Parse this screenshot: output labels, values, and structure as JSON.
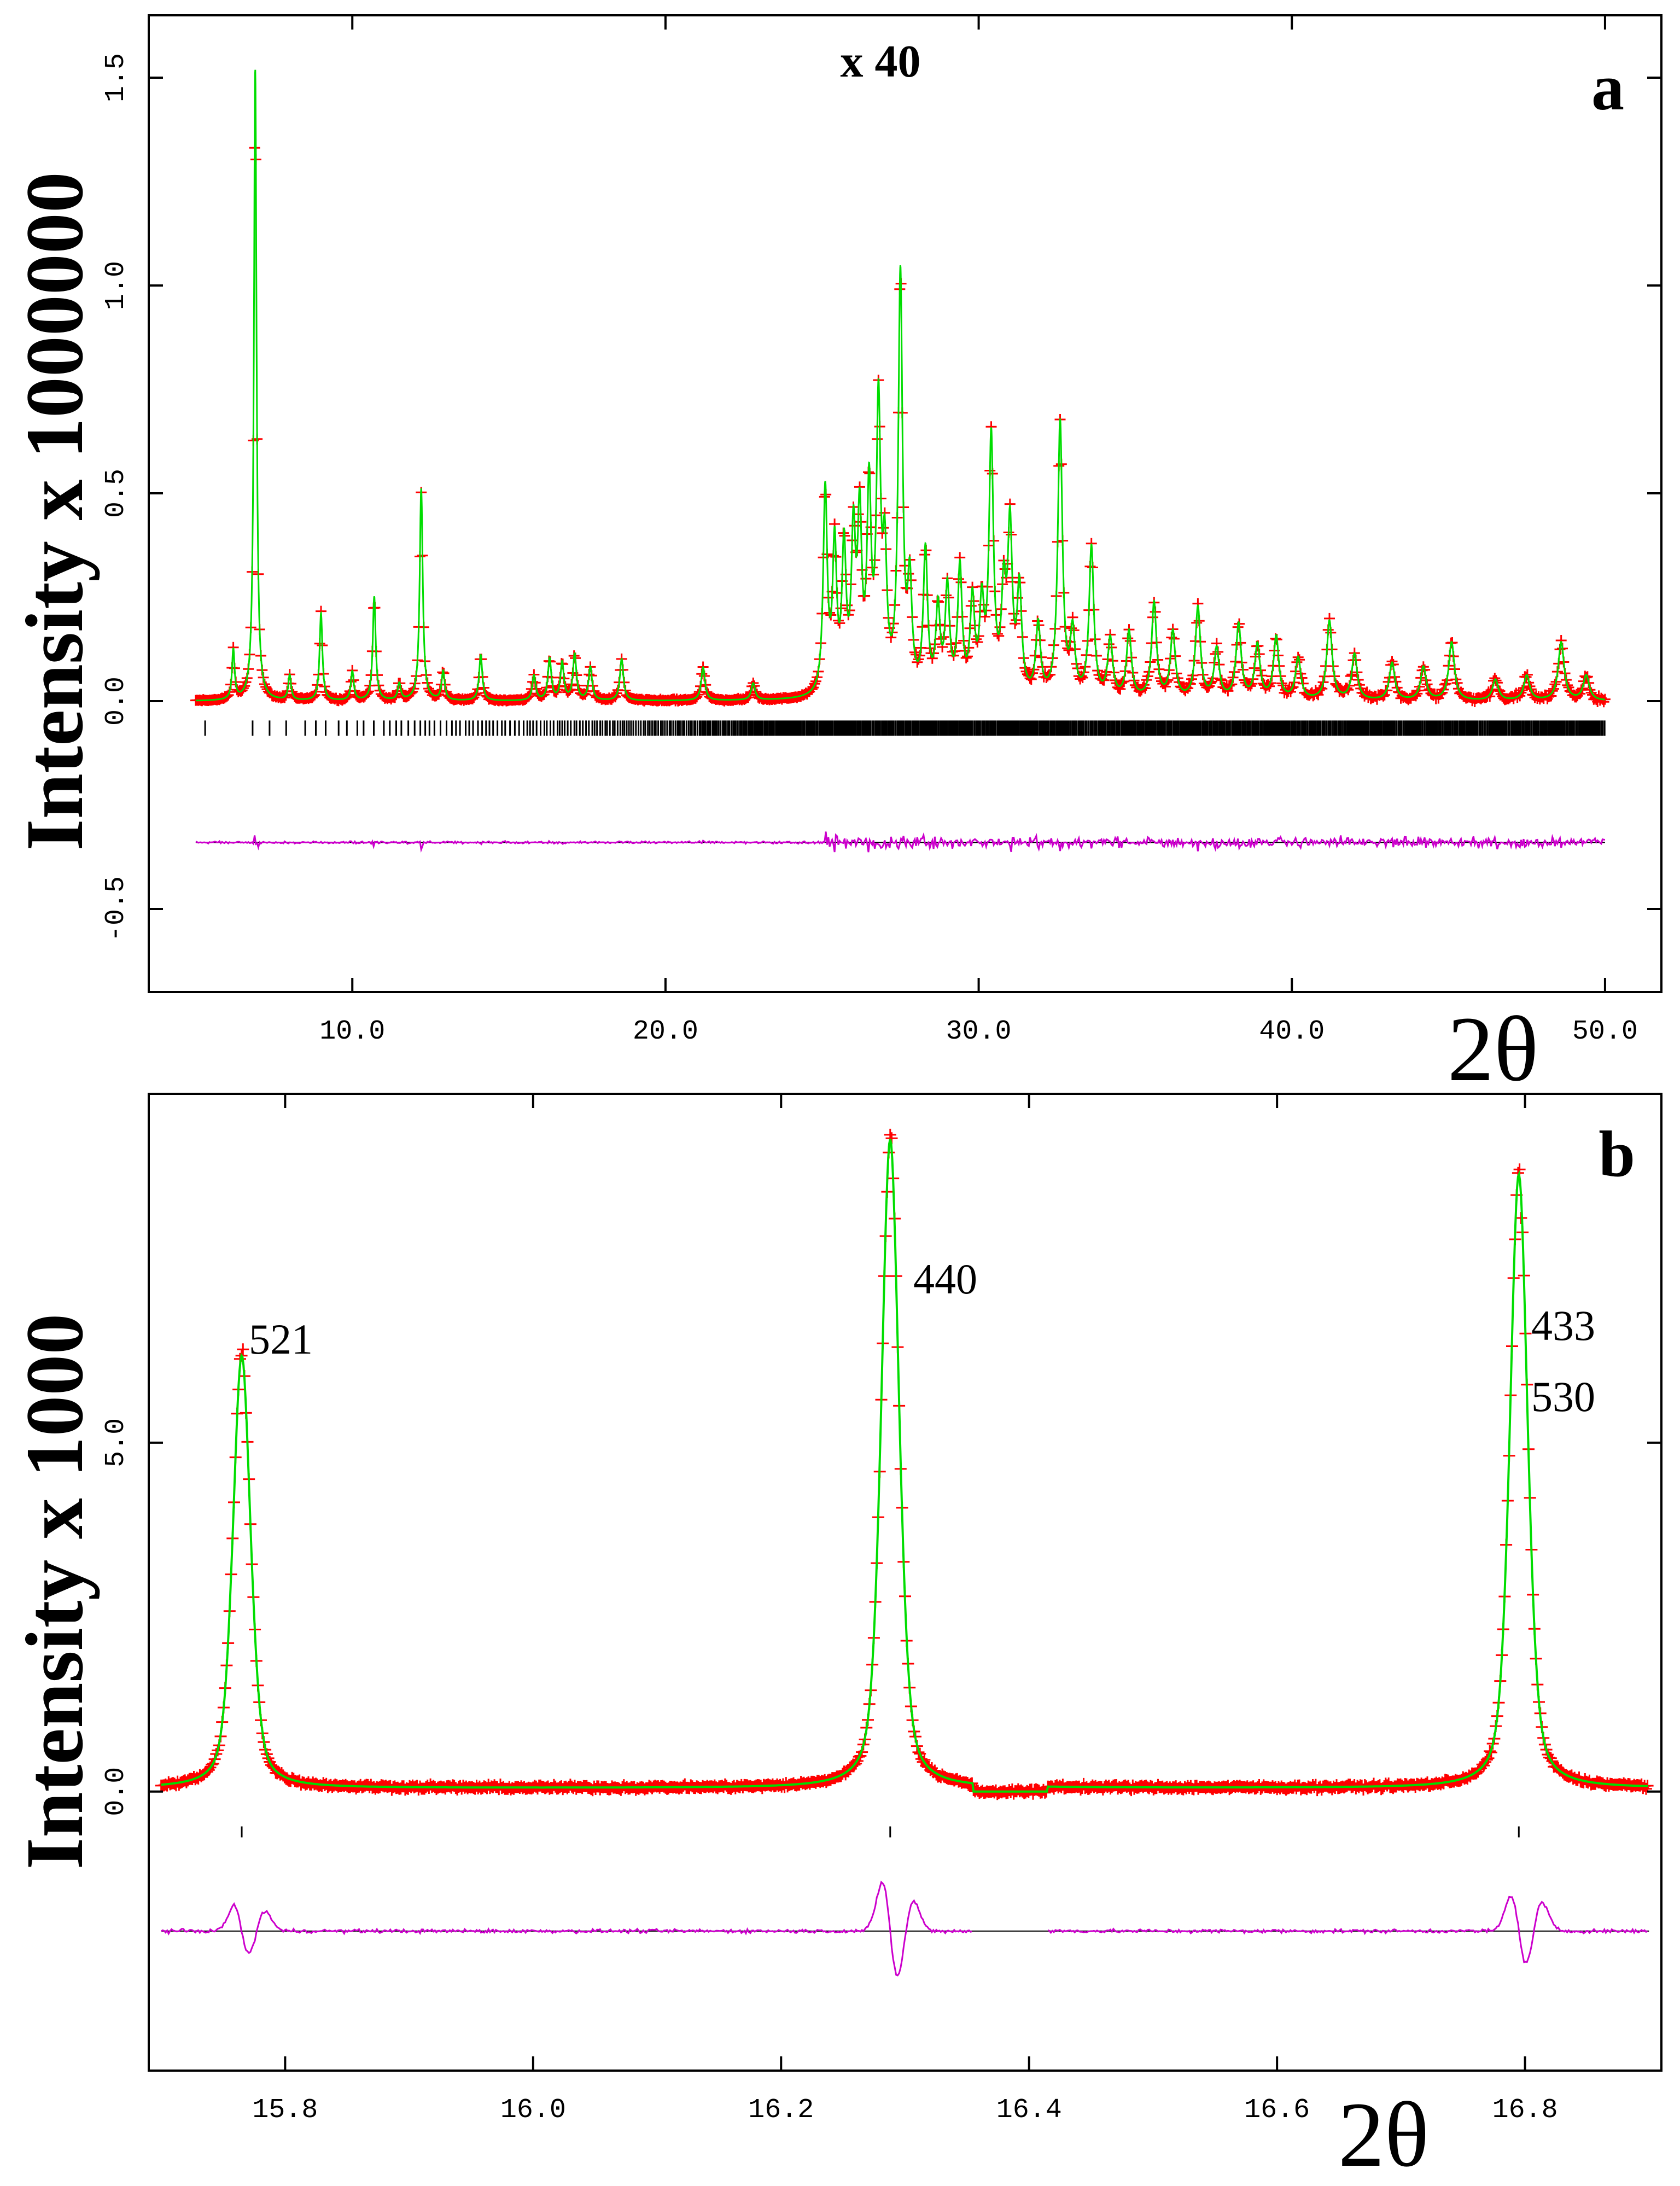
{
  "chart_data": [
    {
      "panel": "a",
      "type": "line",
      "description_series": [
        "observed (red crosses)",
        "calculated (green line)",
        "difference (magenta)",
        "reflection markers (black ticks)"
      ],
      "panel_label": "a",
      "scale_annotation": "x 40",
      "xlabel": "2θ",
      "ylabel": "Intensity x 1000000",
      "xlim": [
        3.5,
        51.8
      ],
      "ylim": [
        -0.7,
        1.65
      ],
      "xticks": [
        10,
        20,
        30,
        40,
        50
      ],
      "xtick_labels": [
        "10.0",
        "20.0",
        "30.0",
        "40.0",
        "50.0"
      ],
      "yticks": [
        -0.5,
        0.0,
        0.5,
        1.0,
        1.5
      ],
      "ytick_labels": [
        "-0.5",
        "0.0",
        "0.5",
        "1.0",
        "1.5"
      ],
      "x_range": [
        5.0,
        50.0
      ],
      "baseline": 0.0,
      "diff_offset": -0.34,
      "tick_row_y": -0.065,
      "major_peaks": [
        {
          "x": 6.2,
          "y": 0.12
        },
        {
          "x": 6.9,
          "y": 1.52
        },
        {
          "x": 8.0,
          "y": 0.06
        },
        {
          "x": 9.0,
          "y": 0.21
        },
        {
          "x": 10.0,
          "y": 0.07
        },
        {
          "x": 10.7,
          "y": 0.25
        },
        {
          "x": 11.5,
          "y": 0.04
        },
        {
          "x": 12.2,
          "y": 0.51
        },
        {
          "x": 12.9,
          "y": 0.07
        },
        {
          "x": 14.1,
          "y": 0.11
        },
        {
          "x": 15.8,
          "y": 0.06
        },
        {
          "x": 16.3,
          "y": 0.1
        },
        {
          "x": 16.7,
          "y": 0.09
        },
        {
          "x": 17.1,
          "y": 0.11
        },
        {
          "x": 17.6,
          "y": 0.08
        },
        {
          "x": 18.6,
          "y": 0.1
        },
        {
          "x": 21.2,
          "y": 0.08
        },
        {
          "x": 22.8,
          "y": 0.04
        },
        {
          "x": 25.1,
          "y": 0.49
        },
        {
          "x": 25.4,
          "y": 0.35
        },
        {
          "x": 25.7,
          "y": 0.34
        },
        {
          "x": 26.0,
          "y": 0.36
        },
        {
          "x": 26.2,
          "y": 0.4
        },
        {
          "x": 26.5,
          "y": 0.47
        },
        {
          "x": 26.8,
          "y": 0.67
        },
        {
          "x": 27.0,
          "y": 0.3
        },
        {
          "x": 27.5,
          "y": 1.0
        },
        {
          "x": 27.8,
          "y": 0.25
        },
        {
          "x": 28.3,
          "y": 0.34
        },
        {
          "x": 28.7,
          "y": 0.2
        },
        {
          "x": 29.0,
          "y": 0.25
        },
        {
          "x": 29.4,
          "y": 0.3
        },
        {
          "x": 29.8,
          "y": 0.22
        },
        {
          "x": 30.1,
          "y": 0.2
        },
        {
          "x": 30.4,
          "y": 0.61
        },
        {
          "x": 30.8,
          "y": 0.23
        },
        {
          "x": 31.0,
          "y": 0.39
        },
        {
          "x": 31.3,
          "y": 0.25
        },
        {
          "x": 31.9,
          "y": 0.17
        },
        {
          "x": 32.6,
          "y": 0.66
        },
        {
          "x": 33.0,
          "y": 0.15
        },
        {
          "x": 33.6,
          "y": 0.36
        },
        {
          "x": 34.2,
          "y": 0.14
        },
        {
          "x": 34.8,
          "y": 0.16
        },
        {
          "x": 35.6,
          "y": 0.23
        },
        {
          "x": 36.2,
          "y": 0.16
        },
        {
          "x": 37.0,
          "y": 0.22
        },
        {
          "x": 37.6,
          "y": 0.12
        },
        {
          "x": 38.3,
          "y": 0.18
        },
        {
          "x": 38.9,
          "y": 0.13
        },
        {
          "x": 39.5,
          "y": 0.15
        },
        {
          "x": 40.2,
          "y": 0.1
        },
        {
          "x": 41.2,
          "y": 0.19
        },
        {
          "x": 42.0,
          "y": 0.11
        },
        {
          "x": 43.2,
          "y": 0.09
        },
        {
          "x": 44.2,
          "y": 0.08
        },
        {
          "x": 45.1,
          "y": 0.14
        },
        {
          "x": 46.5,
          "y": 0.05
        },
        {
          "x": 47.5,
          "y": 0.06
        },
        {
          "x": 48.6,
          "y": 0.14
        },
        {
          "x": 49.4,
          "y": 0.06
        }
      ]
    },
    {
      "panel": "b",
      "type": "line",
      "description_series": [
        "observed (red crosses)",
        "calculated (green line)",
        "difference (magenta)",
        "reflection markers (black ticks)"
      ],
      "panel_label": "b",
      "xlabel": "2θ",
      "ylabel": "Intensity x 1000",
      "xlim": [
        15.69,
        16.91
      ],
      "ylim": [
        -4.0,
        10.0
      ],
      "xticks": [
        15.8,
        16.0,
        16.2,
        16.4,
        16.6,
        16.8
      ],
      "xtick_labels": [
        "15.8",
        "16.0",
        "16.2",
        "16.4",
        "16.6",
        "16.8"
      ],
      "yticks": [
        0.0,
        5.0
      ],
      "ytick_labels": [
        "0.0",
        "5.0"
      ],
      "x_range": [
        15.7,
        16.9
      ],
      "baseline": 0.05,
      "diff_offset": -2.0,
      "gap_region": [
        16.355,
        16.415
      ],
      "peaks": [
        {
          "x": 15.765,
          "height": 6.2,
          "hkl": "521"
        },
        {
          "x": 16.288,
          "height": 9.3,
          "hkl": "440"
        },
        {
          "x": 16.795,
          "height": 8.8,
          "hkl": "433"
        }
      ],
      "peak_labels": [
        "521",
        "440",
        "433",
        "530"
      ]
    }
  ]
}
